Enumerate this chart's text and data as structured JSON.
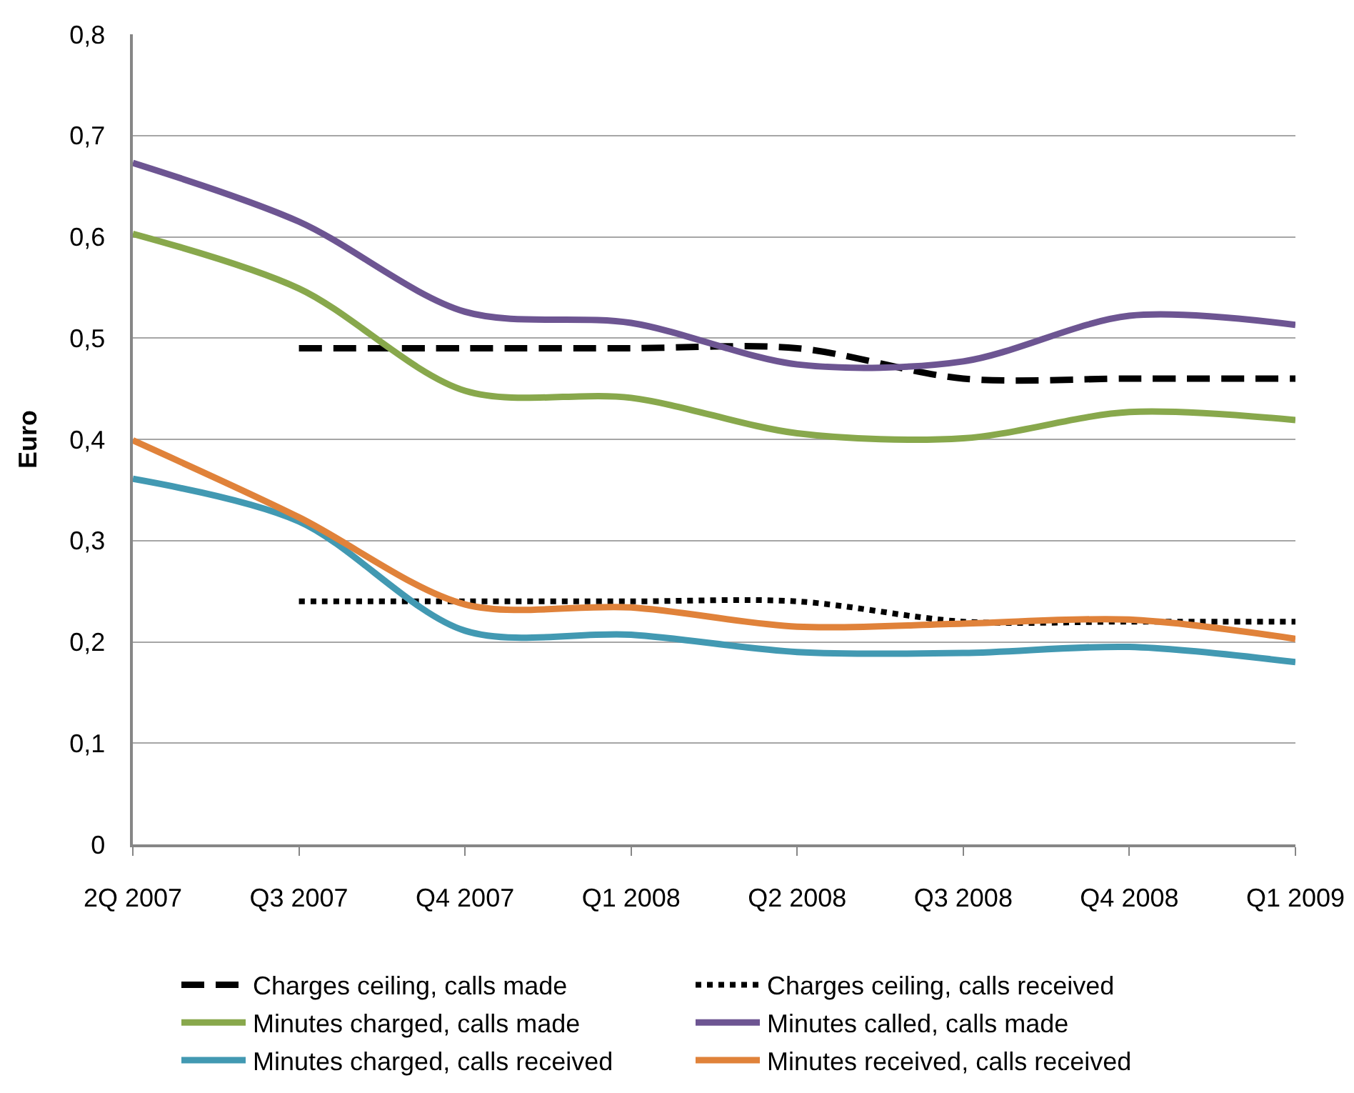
{
  "chart_data": {
    "type": "line",
    "ylabel": "Euro",
    "categories": [
      "2Q 2007",
      "Q3 2007",
      "Q4 2007",
      "Q1 2008",
      "Q2 2008",
      "Q3 2008",
      "Q4 2008",
      "Q1 2009"
    ],
    "ylim": [
      0,
      0.8
    ],
    "yticks": [
      0,
      {
        "value": 0.1,
        "label": "0,1"
      },
      {
        "value": 0.2,
        "label": "0,2"
      },
      {
        "value": 0.3,
        "label": "0,3"
      },
      {
        "value": 0.4,
        "label": "0,4"
      },
      {
        "value": 0.5,
        "label": "0,5"
      },
      {
        "value": 0.6,
        "label": "0,6"
      },
      {
        "value": 0.7,
        "label": "0,7"
      },
      {
        "value": 0.8,
        "label": "0,8"
      }
    ],
    "grid": "y",
    "legend": "bottom",
    "marker": "none",
    "series": [
      {
        "name": "Charges ceiling, calls made",
        "color": "#000000",
        "line_style": "dashed",
        "values": [
          null,
          0.49,
          0.49,
          0.49,
          0.49,
          0.46,
          0.46,
          0.46
        ]
      },
      {
        "name": "Charges ceiling, calls received",
        "color": "#000000",
        "line_style": "dotted",
        "values": [
          null,
          0.24,
          0.24,
          0.24,
          0.24,
          0.22,
          0.22,
          0.22
        ]
      },
      {
        "name": "Minutes charged, calls made",
        "color": "#88a84c",
        "line_style": "solid",
        "values": [
          0.603,
          0.549,
          0.448,
          0.441,
          0.406,
          0.401,
          0.427,
          0.419
        ]
      },
      {
        "name": "Minutes called, calls made",
        "color": "#6d5592",
        "line_style": "solid",
        "values": [
          0.673,
          0.615,
          0.526,
          0.515,
          0.474,
          0.477,
          0.522,
          0.513
        ]
      },
      {
        "name": "Minutes charged, calls received",
        "color": "#4299b2",
        "line_style": "solid",
        "values": [
          0.361,
          0.319,
          0.211,
          0.207,
          0.19,
          0.189,
          0.195,
          0.18
        ]
      },
      {
        "name": "Minutes received, calls received",
        "color": "#e0823a",
        "line_style": "solid",
        "values": [
          0.399,
          0.323,
          0.237,
          0.234,
          0.215,
          0.218,
          0.222,
          0.203
        ]
      }
    ]
  }
}
